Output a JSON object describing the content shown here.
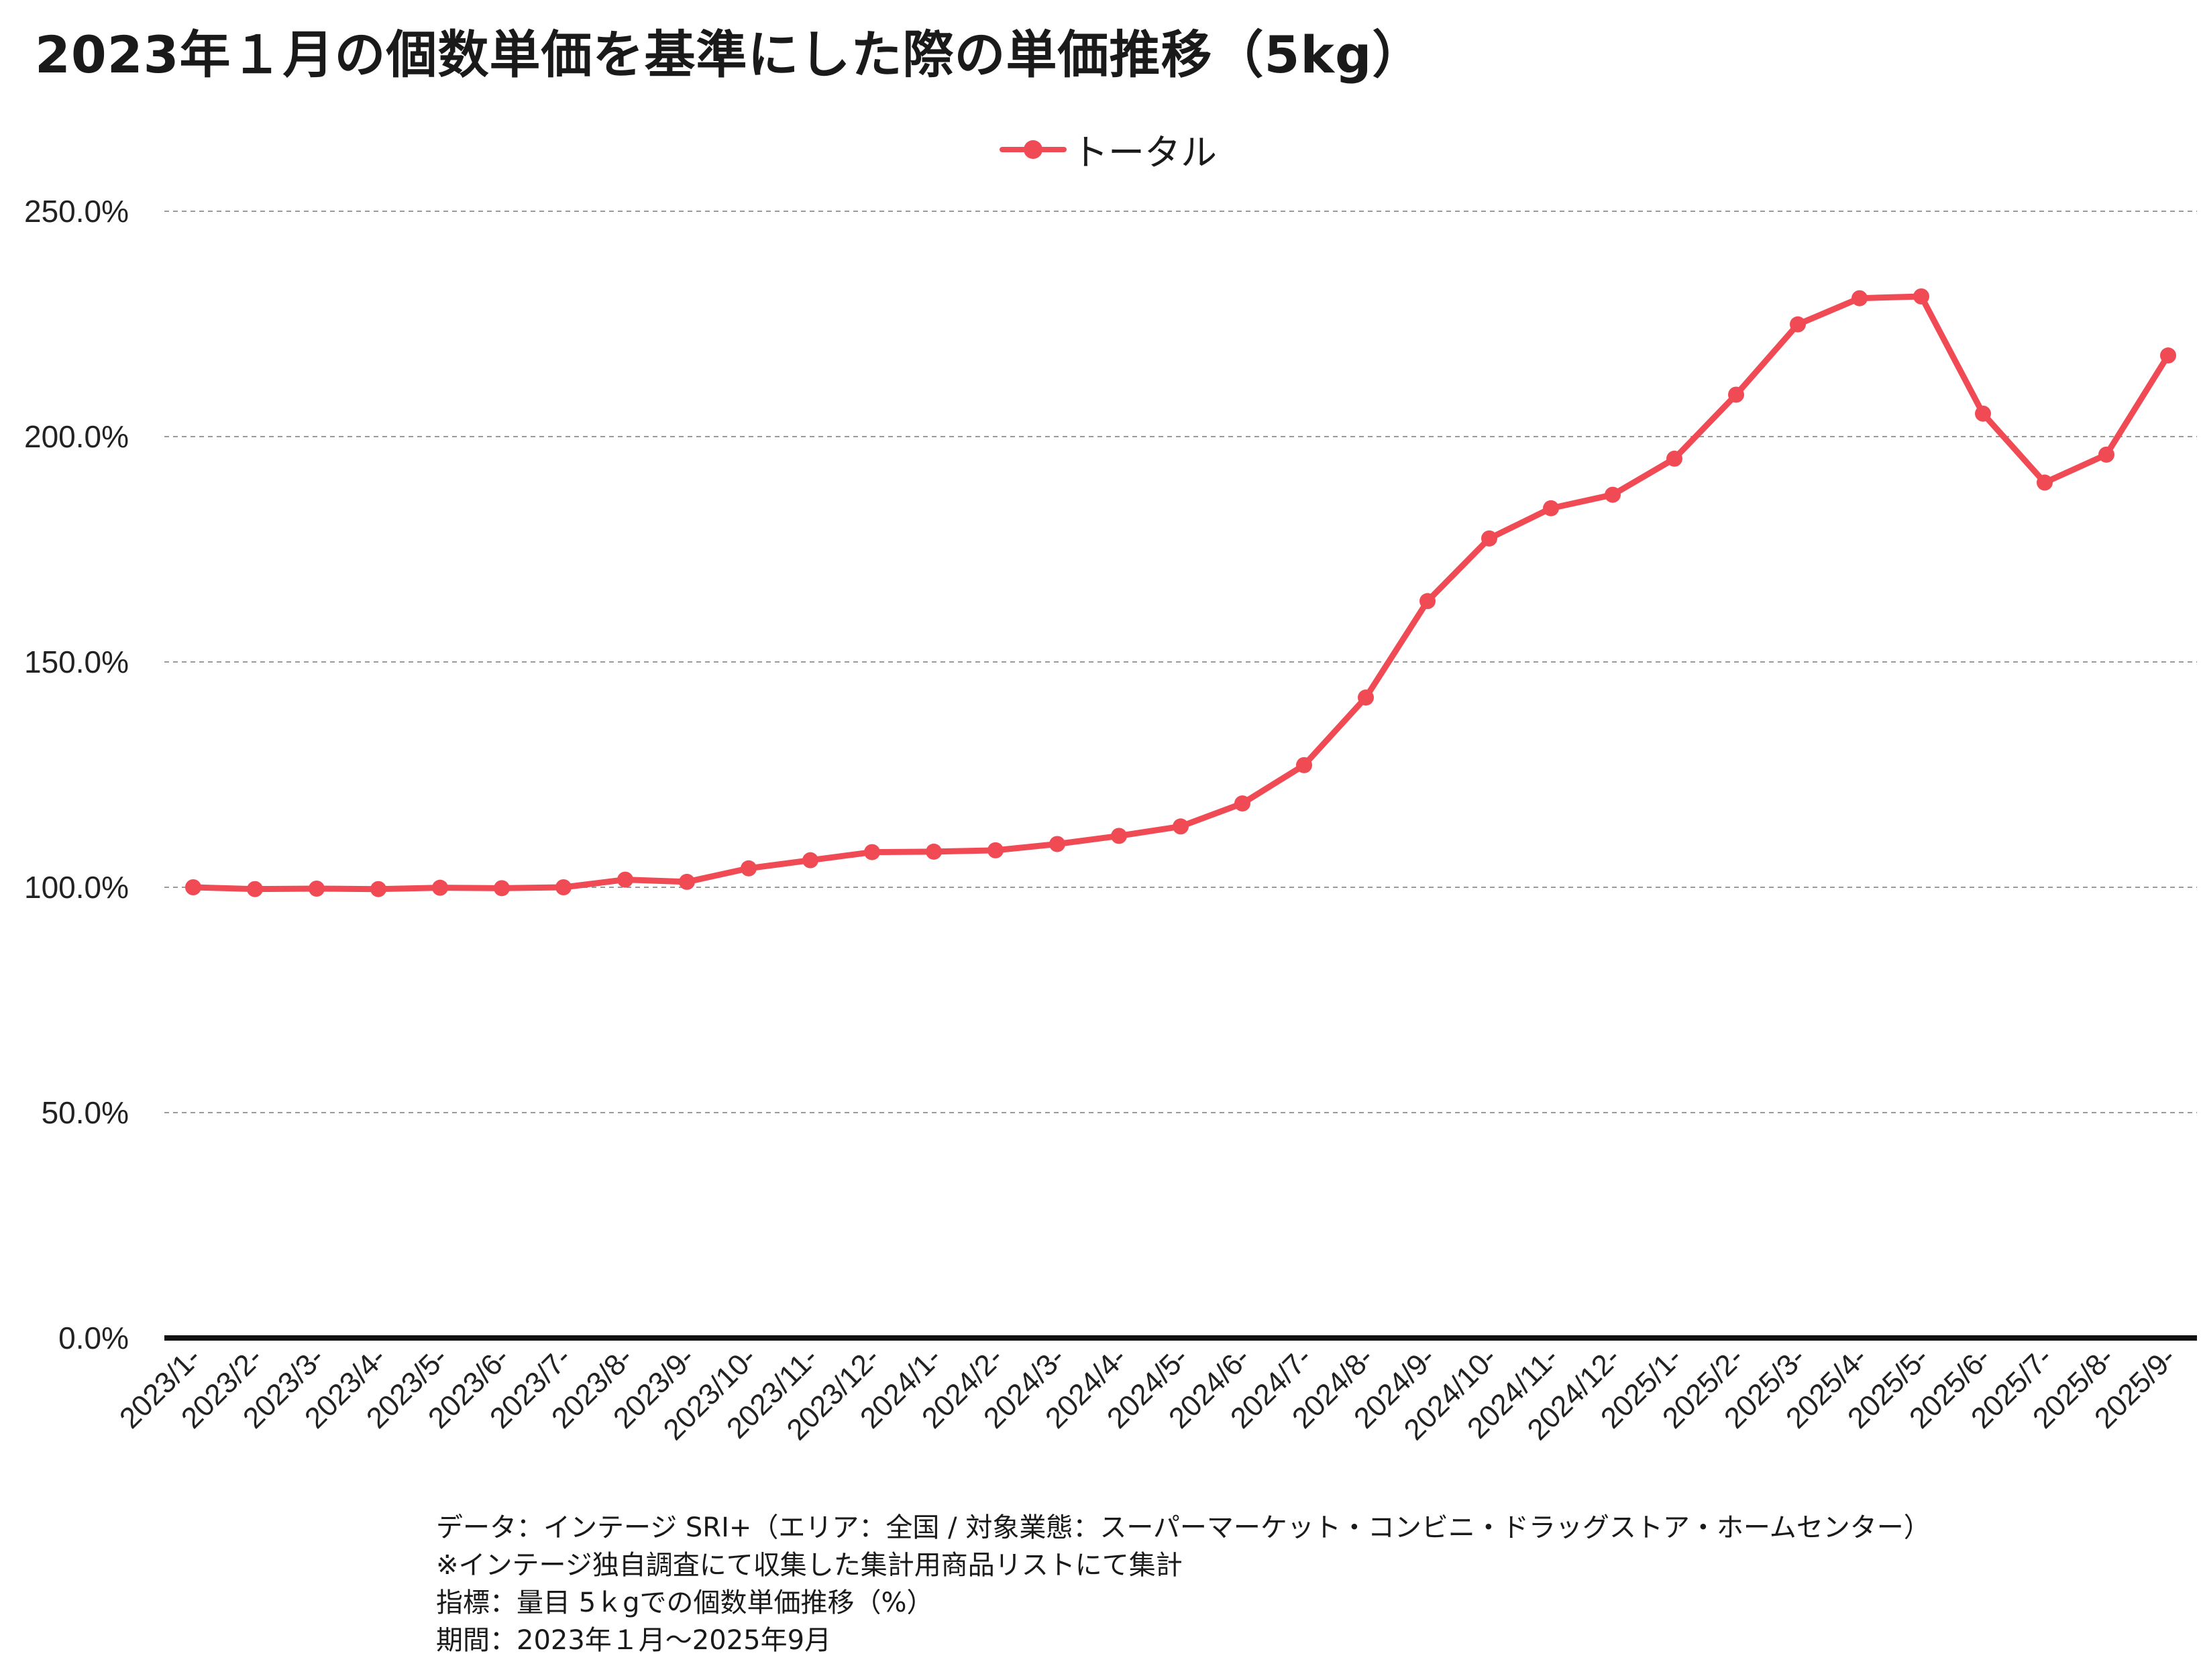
{
  "title": "2023年１月の個数単価を基準にした際の単価推移（5kg）",
  "colors": {
    "series": "#f04b55",
    "axis": "#111111",
    "grid": "#9a9a9a"
  },
  "legend": {
    "label": "トータル",
    "position": "top-center"
  },
  "notes": [
    "データ：インテージ SRI+（エリア：全国 / 対象業態：スーパーマーケット・コンビニ・ドラッグストア・ホームセンター）",
    "※インテージ独自調査にて収集した集計用商品リストにて集計",
    "指標：量目 5ｋgでの個数単価推移（%）",
    "期間：2023年１月～2025年9月"
  ],
  "chart_data": {
    "type": "line",
    "title": "2023年１月の個数単価を基準にした際の単価推移（5kg）",
    "xlabel": "",
    "ylabel": "",
    "ylim": [
      0,
      250
    ],
    "yticks": [
      0,
      50,
      100,
      150,
      200,
      250
    ],
    "ytick_labels": [
      "0.0%",
      "50.0%",
      "100.0%",
      "150.0%",
      "200.0%",
      "250.0%"
    ],
    "grid": true,
    "categories": [
      "2023/1-",
      "2023/2-",
      "2023/3-",
      "2023/4-",
      "2023/5-",
      "2023/6-",
      "2023/7-",
      "2023/8-",
      "2023/9-",
      "2023/10-",
      "2023/11-",
      "2023/12-",
      "2024/1-",
      "2024/2-",
      "2024/3-",
      "2024/4-",
      "2024/5-",
      "2024/6-",
      "2024/7-",
      "2024/8-",
      "2024/9-",
      "2024/10-",
      "2024/11-",
      "2024/12-",
      "2025/1-",
      "2025/2-",
      "2025/3-",
      "2025/4-",
      "2025/5-",
      "2025/6-",
      "2025/7-",
      "2025/8-",
      "2025/9-"
    ],
    "series": [
      {
        "name": "トータル",
        "values": [
          100.0,
          99.6,
          99.7,
          99.6,
          99.9,
          99.8,
          100.0,
          101.7,
          101.2,
          104.2,
          106.0,
          107.8,
          107.9,
          108.2,
          109.6,
          111.4,
          113.5,
          118.6,
          127.1,
          142.1,
          163.5,
          177.4,
          184.1,
          187.1,
          195.1,
          209.3,
          224.9,
          230.7,
          231.1,
          205.1,
          189.8,
          196.0,
          218.0
        ]
      }
    ]
  }
}
